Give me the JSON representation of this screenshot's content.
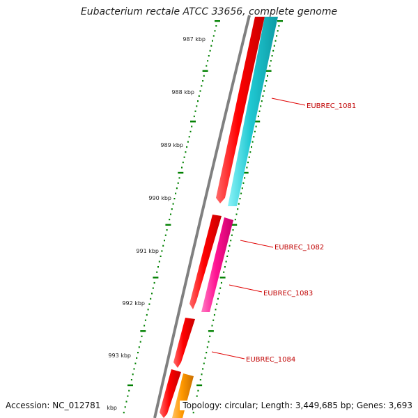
{
  "title": "Eubacterium rectale ATCC 33656, complete genome",
  "footer": {
    "accession": "Accession: NC_012781",
    "info": "Topology: circular; Length: 3,449,685 bp; Genes: 3,693"
  },
  "colors": {
    "backbone": "#808080",
    "forward_gene": "#ff0000",
    "reverse_gene": "#00c8d0",
    "pink_gene": "#ff1493",
    "orange_gene": "#ff9900",
    "tick": "#008000",
    "label": "#c00000"
  },
  "ticks": [
    {
      "label": "987 kbp"
    },
    {
      "label": "988 kbp"
    },
    {
      "label": "989 kbp"
    },
    {
      "label": "990 kbp"
    },
    {
      "label": "991 kbp"
    },
    {
      "label": "992 kbp"
    },
    {
      "label": "993 kbp"
    },
    {
      "label": "kbp"
    }
  ],
  "gene_labels": [
    "EUBREC_1081",
    "EUBREC_1082",
    "EUBREC_1083",
    "EUBREC_1084"
  ]
}
